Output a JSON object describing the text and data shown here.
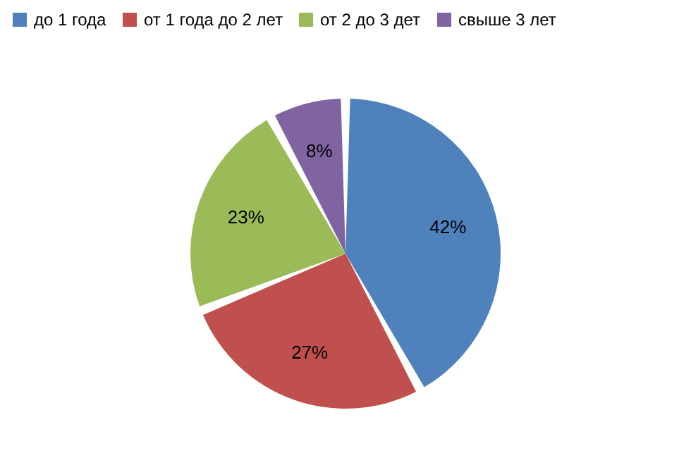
{
  "chart_data": {
    "type": "pie",
    "categories": [
      "до 1 года",
      "от 1 года до 2 лет",
      "от 2 до 3 дет",
      "свыше 3 лет"
    ],
    "values": [
      42,
      27,
      23,
      8
    ],
    "colors": [
      "#4f81bd",
      "#c0504d",
      "#9bbb59",
      "#8064a2"
    ],
    "value_labels": [
      "42%",
      "27%",
      "23%",
      "8%"
    ],
    "legend": "top"
  }
}
